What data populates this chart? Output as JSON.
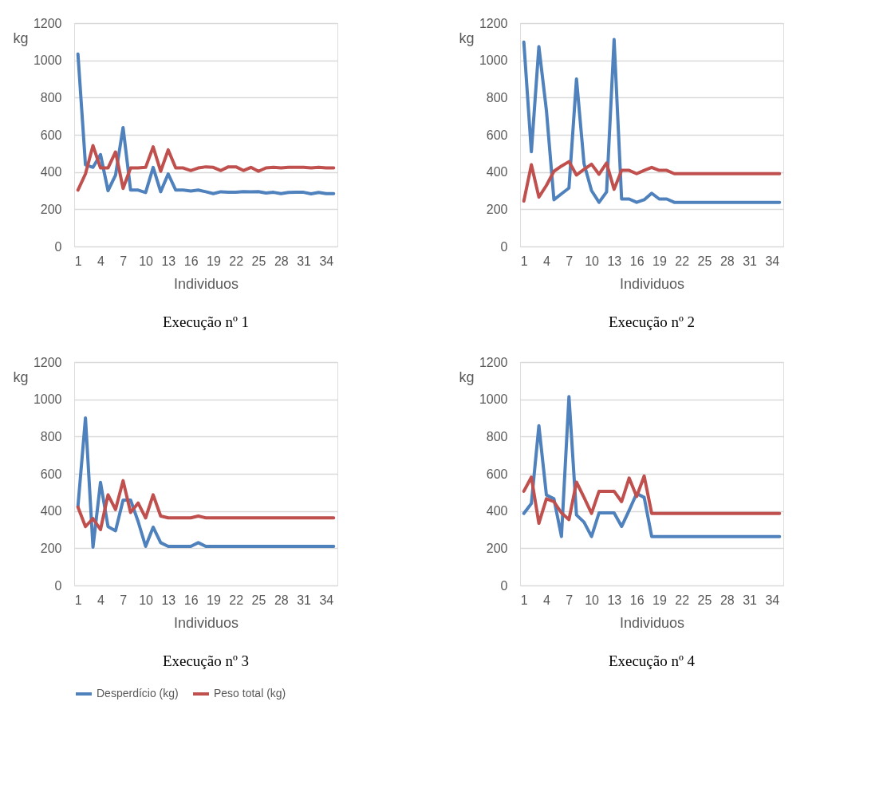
{
  "chart_data": [
    {
      "type": "line",
      "title": "Execução nº 1",
      "xlabel": "Individuos",
      "ylabel": "kg",
      "ylim": [
        0,
        1200
      ],
      "yticks": [
        0,
        200,
        400,
        600,
        800,
        1000,
        1200
      ],
      "grid": "y",
      "legend": "bottom",
      "categories": [
        "1",
        null,
        null,
        "4",
        null,
        null,
        "7",
        null,
        null,
        "10",
        null,
        null,
        "13",
        null,
        null,
        "16",
        null,
        null,
        "19",
        null,
        null,
        "22",
        null,
        null,
        "25",
        null,
        null,
        "28",
        null,
        null,
        "31",
        null,
        null,
        "34",
        null
      ],
      "series": [
        {
          "name": "Desperdício (kg)",
          "color": "#4f81bd",
          "values": [
            1034,
            439,
            425,
            494,
            300,
            383,
            639,
            303,
            303,
            290,
            425,
            294,
            390,
            303,
            303,
            298,
            303,
            294,
            284,
            294,
            291,
            291,
            295,
            294,
            295,
            287,
            291,
            284,
            290,
            291,
            291,
            283,
            290,
            284,
            284
          ]
        },
        {
          "name": "Peso total (kg)",
          "color": "#c0504d",
          "values": [
            303,
            390,
            542,
            422,
            422,
            508,
            312,
            422,
            422,
            425,
            535,
            404,
            519,
            422,
            422,
            408,
            422,
            428,
            425,
            408,
            428,
            428,
            408,
            425,
            404,
            422,
            425,
            422,
            425,
            425,
            425,
            422,
            425,
            422,
            422
          ]
        }
      ]
    },
    {
      "type": "line",
      "title": "Execução nº 2",
      "xlabel": "Individuos",
      "ylabel": "kg",
      "ylim": [
        0,
        1200
      ],
      "yticks": [
        0,
        200,
        400,
        600,
        800,
        1000,
        1200
      ],
      "grid": "y",
      "legend": "bottom",
      "categories": [
        "1",
        null,
        null,
        "4",
        null,
        null,
        "7",
        null,
        null,
        "10",
        null,
        null,
        "13",
        null,
        null,
        "16",
        null,
        null,
        "19",
        null,
        null,
        "22",
        null,
        null,
        "25",
        null,
        null,
        "28",
        null,
        null,
        "31",
        null,
        null,
        "34",
        null
      ],
      "series": [
        {
          "name": "Desperdício (kg)",
          "color": "#4f81bd",
          "values": [
            1098,
            509,
            1074,
            732,
            251,
            283,
            314,
            900,
            446,
            300,
            237,
            293,
            1112,
            255,
            255,
            237,
            251,
            286,
            255,
            255,
            237,
            237,
            237,
            237,
            237,
            237,
            237,
            237,
            237,
            237,
            237,
            237,
            237,
            237,
            237
          ]
        },
        {
          "name": "Peso total (kg)",
          "color": "#c0504d",
          "values": [
            244,
            439,
            265,
            328,
            404,
            432,
            456,
            384,
            414,
            442,
            388,
            448,
            307,
            409,
            409,
            391,
            409,
            425,
            409,
            409,
            391,
            391,
            391,
            391,
            391,
            391,
            391,
            391,
            391,
            391,
            391,
            391,
            391,
            391,
            391
          ]
        }
      ]
    },
    {
      "type": "line",
      "title": "Execução nº 3",
      "xlabel": "Individuos",
      "ylabel": "kg",
      "ylim": [
        0,
        1200
      ],
      "yticks": [
        0,
        200,
        400,
        600,
        800,
        1000,
        1200
      ],
      "grid": "y",
      "legend": "bottom",
      "categories": [
        "1",
        null,
        null,
        "4",
        null,
        null,
        "7",
        null,
        null,
        "10",
        null,
        null,
        "13",
        null,
        null,
        "16",
        null,
        null,
        "19",
        null,
        null,
        "22",
        null,
        null,
        "25",
        null,
        null,
        "28",
        null,
        null,
        "31",
        null,
        null,
        "34",
        null
      ],
      "series": [
        {
          "name": "Desperdício (kg)",
          "color": "#4f81bd",
          "values": [
            424,
            900,
            206,
            554,
            316,
            294,
            459,
            459,
            344,
            210,
            313,
            230,
            210,
            210,
            210,
            210,
            230,
            210,
            210,
            210,
            210,
            210,
            210,
            210,
            210,
            210,
            210,
            210,
            210,
            210,
            210,
            210,
            210,
            210,
            210
          ]
        },
        {
          "name": "Peso total (kg)",
          "color": "#c0504d",
          "values": [
            421,
            316,
            360,
            300,
            487,
            408,
            563,
            392,
            443,
            363,
            487,
            373,
            363,
            363,
            363,
            363,
            373,
            363,
            363,
            363,
            363,
            363,
            363,
            363,
            363,
            363,
            363,
            363,
            363,
            363,
            363,
            363,
            363,
            363,
            363
          ]
        }
      ]
    },
    {
      "type": "line",
      "title": "Execução nº 4",
      "xlabel": "Individuos",
      "ylabel": "kg",
      "ylim": [
        0,
        1200
      ],
      "yticks": [
        0,
        200,
        400,
        600,
        800,
        1000,
        1200
      ],
      "grid": "y",
      "legend": "bottom",
      "categories": [
        "1",
        null,
        null,
        "4",
        null,
        null,
        "7",
        null,
        null,
        "10",
        null,
        null,
        "13",
        null,
        null,
        "16",
        null,
        null,
        "19",
        null,
        null,
        "22",
        null,
        null,
        "25",
        null,
        null,
        "28",
        null,
        null,
        "31",
        null,
        null,
        "34",
        null
      ],
      "series": [
        {
          "name": "Desperdício (kg)",
          "color": "#4f81bd",
          "values": [
            387,
            440,
            858,
            486,
            466,
            263,
            1015,
            379,
            340,
            263,
            390,
            390,
            390,
            317,
            403,
            494,
            473,
            263,
            263,
            263,
            263,
            263,
            263,
            263,
            263,
            263,
            263,
            263,
            263,
            263,
            263,
            263,
            263,
            263,
            263
          ]
        },
        {
          "name": "Peso total (kg)",
          "color": "#c0504d",
          "values": [
            506,
            582,
            334,
            466,
            450,
            390,
            354,
            555,
            473,
            387,
            506,
            506,
            506,
            450,
            577,
            478,
            588,
            387,
            387,
            387,
            387,
            387,
            387,
            387,
            387,
            387,
            387,
            387,
            387,
            387,
            387,
            387,
            387,
            387,
            387
          ]
        }
      ]
    }
  ]
}
